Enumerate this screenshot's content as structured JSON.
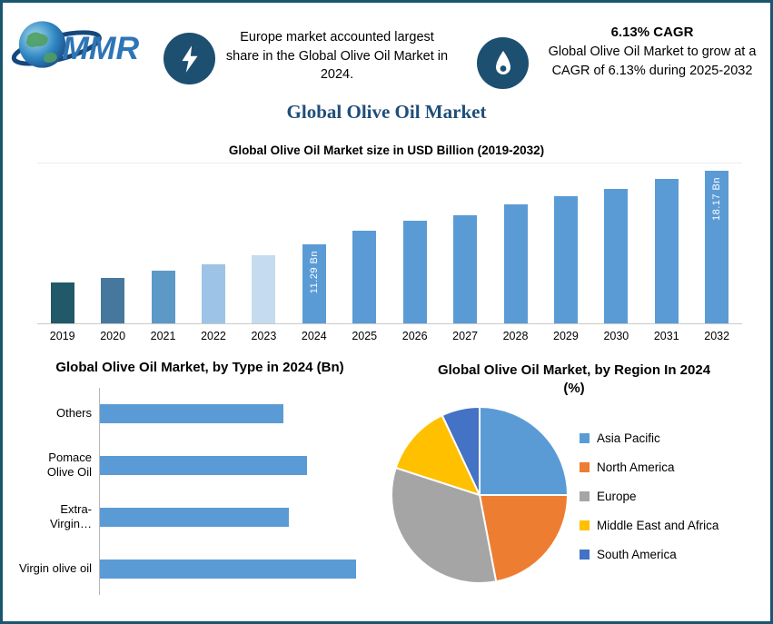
{
  "header": {
    "logo_text": "MMR",
    "callout_europe": "Europe market accounted largest share in the Global Olive Oil Market in 2024.",
    "cagr_value": "6.13% CAGR",
    "callout_growth": "Global Olive Oil Market to grow at a CAGR of 6.13% during 2025-2032",
    "title": "Global Olive Oil Market"
  },
  "colors": {
    "border": "#19576F",
    "icon_circle": "#1D4F71",
    "title_accent": "#1F4E79",
    "bar_default": "#5B9BD5"
  },
  "chart_data": [
    {
      "type": "bar",
      "title": "Global Olive Oil Market size in USD Billion (2019-2032)",
      "categories": [
        "2019",
        "2020",
        "2021",
        "2022",
        "2023",
        "2024",
        "2025",
        "2026",
        "2027",
        "2028",
        "2029",
        "2030",
        "2031",
        "2032"
      ],
      "values": [
        7.8,
        8.2,
        8.9,
        9.5,
        10.3,
        11.29,
        12.6,
        13.5,
        14.0,
        15.0,
        15.8,
        16.5,
        17.4,
        18.17
      ],
      "unit": "USD Billion",
      "ylim": [
        4,
        19
      ],
      "grid": false,
      "legend": "none",
      "bar_colors": [
        "#215968",
        "#46789E",
        "#5D99C6",
        "#9DC3E6",
        "#C5DCF0",
        "#5B9BD5",
        "#5B9BD5",
        "#5B9BD5",
        "#5B9BD5",
        "#5B9BD5",
        "#5B9BD5",
        "#5B9BD5",
        "#5B9BD5",
        "#5B9BD5"
      ],
      "bar_labels": {
        "2024": "11.29 Bn",
        "2032": "18.17 Bn"
      }
    },
    {
      "type": "bar",
      "orientation": "horizontal",
      "title": "Global Olive Oil Market, by Type in 2024 (Bn)",
      "categories": [
        "Others",
        "Pomace Olive Oil",
        "Extra-Virgin…",
        "Virgin olive oil"
      ],
      "values": [
        3.0,
        3.4,
        3.1,
        4.2
      ],
      "xlim": [
        0,
        4.6
      ],
      "bar_color": "#5B9BD5",
      "grid": false,
      "legend": "none"
    },
    {
      "type": "pie",
      "title": "Global Olive Oil Market, by Region In 2024 (%)",
      "labels": [
        "Asia Pacific",
        "North America",
        "Europe",
        "Middle East and Africa",
        "South America"
      ],
      "values": [
        25,
        22,
        33,
        13,
        7
      ],
      "colors": [
        "#5B9BD5",
        "#ED7D31",
        "#A5A5A5",
        "#FFC000",
        "#4472C4"
      ],
      "legend_position": "right",
      "start_angle_deg": 0
    }
  ]
}
